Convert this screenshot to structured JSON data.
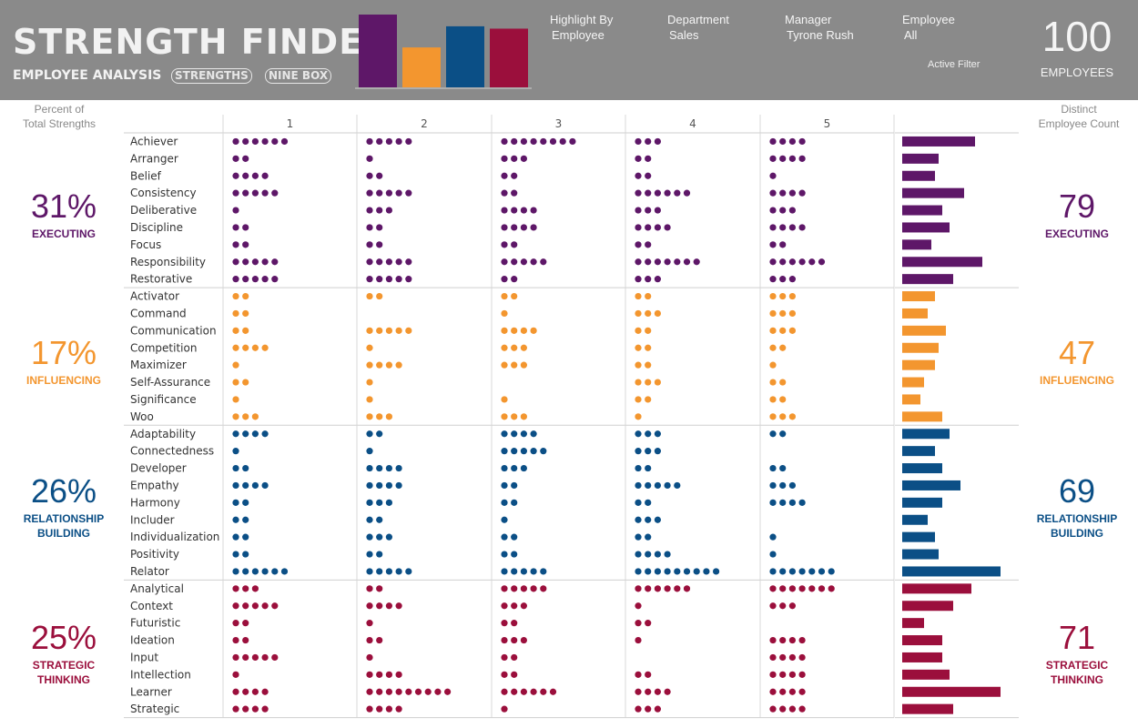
{
  "header": {
    "title": "STRENGTH FINDER",
    "subtitle": "EMPLOYEE ANALYSIS",
    "tabs": [
      "STRENGTHS",
      "NINE BOX"
    ],
    "filters": [
      {
        "label": "Highlight By",
        "value": "Employee"
      },
      {
        "label": "Department",
        "value": "Sales"
      },
      {
        "label": "Manager",
        "value": "Tyrone Rush"
      },
      {
        "label": "Employee",
        "value": "All"
      }
    ],
    "active_filter": "Active Filter",
    "employee_count": "100",
    "employee_label": "EMPLOYEES"
  },
  "left_header": "Percent of\nTotal Strengths",
  "right_header": "Distinct\nEmployee Count",
  "colors": {
    "executing": "#5e1768",
    "influencing": "#f3962f",
    "relationship": "#0b4f86",
    "strategic": "#9b0f3c"
  },
  "chart_data": {
    "type": "table",
    "columns": [
      "1",
      "2",
      "3",
      "4",
      "5"
    ],
    "categories": [
      {
        "key": "executing",
        "name": "EXECUTING",
        "percent": "31%",
        "employees": "79",
        "strengths": [
          {
            "name": "Achiever",
            "counts": [
              6,
              5,
              8,
              3,
              4
            ],
            "total": 20
          },
          {
            "name": "Arranger",
            "counts": [
              2,
              1,
              3,
              2,
              4
            ],
            "total": 10
          },
          {
            "name": "Belief",
            "counts": [
              4,
              2,
              2,
              2,
              1
            ],
            "total": 9
          },
          {
            "name": "Consistency",
            "counts": [
              5,
              5,
              2,
              6,
              4
            ],
            "total": 17
          },
          {
            "name": "Deliberative",
            "counts": [
              1,
              3,
              4,
              3,
              3
            ],
            "total": 11
          },
          {
            "name": "Discipline",
            "counts": [
              2,
              2,
              4,
              4,
              4
            ],
            "total": 13
          },
          {
            "name": "Focus",
            "counts": [
              2,
              2,
              2,
              2,
              2
            ],
            "total": 8
          },
          {
            "name": "Responsibility",
            "counts": [
              5,
              5,
              5,
              7,
              6
            ],
            "total": 22
          },
          {
            "name": "Restorative",
            "counts": [
              5,
              5,
              2,
              3,
              3
            ],
            "total": 14
          }
        ]
      },
      {
        "key": "influencing",
        "name": "INFLUENCING",
        "percent": "17%",
        "employees": "47",
        "strengths": [
          {
            "name": "Activator",
            "counts": [
              2,
              2,
              2,
              2,
              3
            ],
            "total": 9
          },
          {
            "name": "Command",
            "counts": [
              2,
              0,
              1,
              3,
              3
            ],
            "total": 7
          },
          {
            "name": "Communication",
            "counts": [
              2,
              5,
              4,
              2,
              3
            ],
            "total": 12
          },
          {
            "name": "Competition",
            "counts": [
              4,
              1,
              3,
              2,
              2
            ],
            "total": 10
          },
          {
            "name": "Maximizer",
            "counts": [
              1,
              4,
              3,
              2,
              1
            ],
            "total": 9
          },
          {
            "name": "Self-Assurance",
            "counts": [
              2,
              1,
              0,
              3,
              2
            ],
            "total": 6
          },
          {
            "name": "Significance",
            "counts": [
              1,
              1,
              1,
              2,
              2
            ],
            "total": 5
          },
          {
            "name": "Woo",
            "counts": [
              3,
              3,
              3,
              1,
              3
            ],
            "total": 11
          }
        ]
      },
      {
        "key": "relationship",
        "name": "RELATIONSHIP\nBUILDING",
        "percent": "26%",
        "employees": "69",
        "strengths": [
          {
            "name": "Adaptability",
            "counts": [
              4,
              2,
              4,
              3,
              2
            ],
            "total": 13
          },
          {
            "name": "Connectedness",
            "counts": [
              1,
              1,
              5,
              3,
              0
            ],
            "total": 9
          },
          {
            "name": "Developer",
            "counts": [
              2,
              4,
              3,
              2,
              2
            ],
            "total": 11
          },
          {
            "name": "Empathy",
            "counts": [
              4,
              4,
              2,
              5,
              3
            ],
            "total": 16
          },
          {
            "name": "Harmony",
            "counts": [
              2,
              3,
              2,
              2,
              4
            ],
            "total": 11
          },
          {
            "name": "Includer",
            "counts": [
              2,
              2,
              1,
              3,
              0
            ],
            "total": 7
          },
          {
            "name": "Individualization",
            "counts": [
              2,
              3,
              2,
              2,
              1
            ],
            "total": 9
          },
          {
            "name": "Positivity",
            "counts": [
              2,
              2,
              2,
              4,
              1
            ],
            "total": 10
          },
          {
            "name": "Relator",
            "counts": [
              6,
              5,
              5,
              9,
              7
            ],
            "total": 27
          }
        ]
      },
      {
        "key": "strategic",
        "name": "STRATEGIC\nTHINKING",
        "percent": "25%",
        "employees": "71",
        "strengths": [
          {
            "name": "Analytical",
            "counts": [
              3,
              2,
              5,
              6,
              7
            ],
            "total": 19
          },
          {
            "name": "Context",
            "counts": [
              5,
              4,
              3,
              1,
              3
            ],
            "total": 14
          },
          {
            "name": "Futuristic",
            "counts": [
              2,
              1,
              2,
              2,
              0
            ],
            "total": 6
          },
          {
            "name": "Ideation",
            "counts": [
              2,
              2,
              3,
              1,
              4
            ],
            "total": 11
          },
          {
            "name": "Input",
            "counts": [
              5,
              1,
              2,
              0,
              4
            ],
            "total": 11
          },
          {
            "name": "Intellection",
            "counts": [
              1,
              4,
              2,
              2,
              4
            ],
            "total": 13
          },
          {
            "name": "Learner",
            "counts": [
              4,
              9,
              6,
              4,
              4
            ],
            "total": 27
          },
          {
            "name": "Strategic",
            "counts": [
              4,
              4,
              1,
              3,
              4
            ],
            "total": 14
          }
        ]
      }
    ],
    "bar_xmax": 30,
    "header_bars": [
      {
        "key": "executing",
        "value": 31
      },
      {
        "key": "influencing",
        "value": 17
      },
      {
        "key": "relationship",
        "value": 26
      },
      {
        "key": "strategic",
        "value": 25
      }
    ]
  }
}
